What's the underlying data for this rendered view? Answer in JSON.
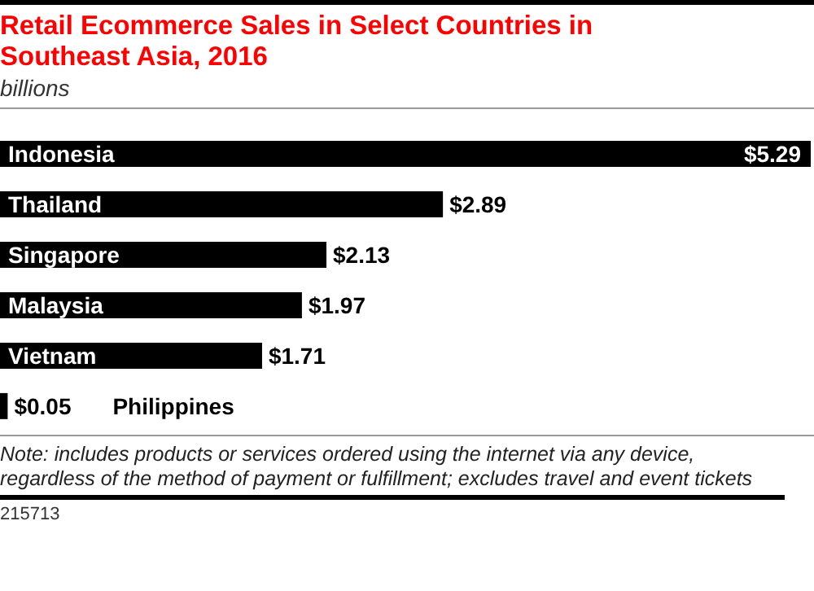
{
  "chart_data": {
    "type": "bar",
    "orientation": "horizontal",
    "title": "Retail Ecommerce Sales in Select Countries in Southeast Asia, 2016",
    "subtitle": "billions",
    "categories": [
      "Indonesia",
      "Thailand",
      "Singapore",
      "Malaysia",
      "Vietnam",
      "Philippines"
    ],
    "values": [
      5.29,
      2.89,
      2.13,
      1.97,
      1.71,
      0.05
    ],
    "value_labels": [
      "$5.29",
      "$2.89",
      "$2.13",
      "$1.97",
      "$1.71",
      "$0.05"
    ],
    "color": "#000000",
    "annotations": [
      "Note: includes products or services ordered using the internet via any device, regardless of the method of payment or fulfillment; excludes travel and event tickets",
      "215713"
    ]
  }
}
